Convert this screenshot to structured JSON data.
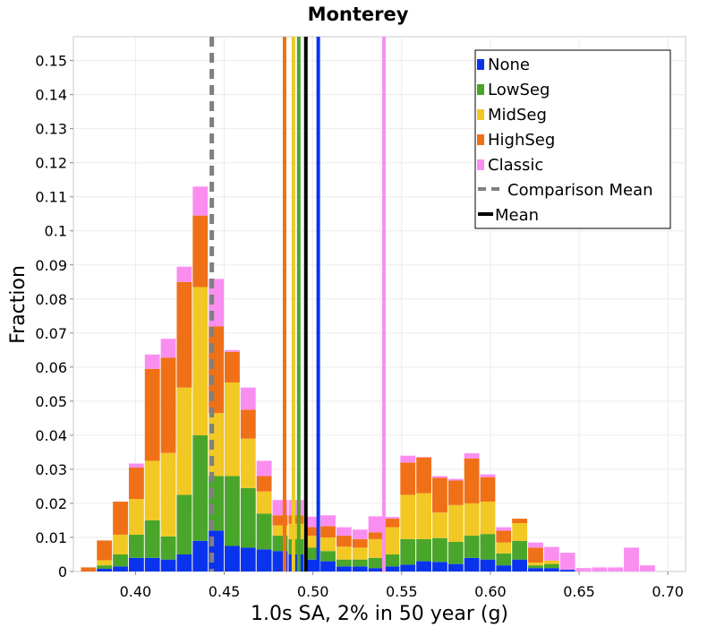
{
  "chart_data": {
    "type": "bar",
    "stacked": true,
    "title": "Monterey",
    "xlabel": "1.0s SA, 2% in 50 year (g)",
    "ylabel": "Fraction",
    "xlim": [
      0.365,
      0.71
    ],
    "ylim": [
      0,
      0.157
    ],
    "bin_width": 0.009,
    "grid": true,
    "legend_position": "top-right",
    "x_ticks": [
      0.4,
      0.45,
      0.5,
      0.55,
      0.6,
      0.65,
      0.7
    ],
    "x_tick_labels": [
      "0.40",
      "0.45",
      "0.50",
      "0.55",
      "0.60",
      "0.65",
      "0.70"
    ],
    "y_ticks": [
      0,
      0.01,
      0.02,
      0.03,
      0.04,
      0.05,
      0.06,
      0.07,
      0.08,
      0.09,
      0.1,
      0.11,
      0.12,
      0.13,
      0.14,
      0.15
    ],
    "y_tick_labels": [
      "0",
      "0.01",
      "0.02",
      "0.03",
      "0.04",
      "0.05",
      "0.06",
      "0.07",
      "0.08",
      "0.09",
      "0.1",
      "0.11",
      "0.12",
      "0.13",
      "0.14",
      "0.15"
    ],
    "bin_starts": [
      0.369,
      0.378,
      0.387,
      0.396,
      0.405,
      0.414,
      0.423,
      0.432,
      0.441,
      0.45,
      0.459,
      0.468,
      0.477,
      0.486,
      0.495,
      0.504,
      0.513,
      0.522,
      0.531,
      0.54,
      0.549,
      0.558,
      0.567,
      0.576,
      0.585,
      0.594,
      0.603,
      0.612,
      0.621,
      0.63,
      0.639,
      0.648,
      0.657,
      0.666,
      0.675,
      0.684,
      0.693,
      0.702
    ],
    "series": [
      {
        "name": "None",
        "color": "#0a33ee",
        "values": [
          0,
          0.0008,
          0.0015,
          0.004,
          0.004,
          0.0035,
          0.005,
          0.009,
          0.012,
          0.0075,
          0.007,
          0.0065,
          0.006,
          0.005,
          0.0035,
          0.003,
          0.0015,
          0.0015,
          0.001,
          0.0015,
          0.002,
          0.003,
          0.0028,
          0.0022,
          0.004,
          0.0035,
          0.0018,
          0.0035,
          0.001,
          0.001,
          0.0005,
          0,
          0,
          0,
          0,
          0,
          0,
          0
        ]
      },
      {
        "name": "LowSeg",
        "color": "#4aa62a",
        "values": [
          0,
          0.001,
          0.0035,
          0.0068,
          0.011,
          0.0068,
          0.0175,
          0.031,
          0.016,
          0.0205,
          0.0175,
          0.0105,
          0.0045,
          0.0045,
          0.0035,
          0.003,
          0.002,
          0.002,
          0.003,
          0.0035,
          0.0075,
          0.0065,
          0.007,
          0.0065,
          0.0065,
          0.0075,
          0.0035,
          0.0055,
          0.0008,
          0.0012,
          0,
          0,
          0,
          0,
          0,
          0,
          0,
          0
        ]
      },
      {
        "name": "MidSeg",
        "color": "#f2c824",
        "values": [
          0,
          0.0015,
          0.0058,
          0.0105,
          0.0175,
          0.0245,
          0.0315,
          0.0435,
          0.0185,
          0.0275,
          0.0145,
          0.0065,
          0.003,
          0.0045,
          0.0035,
          0.004,
          0.0038,
          0.0035,
          0.0055,
          0.008,
          0.013,
          0.0135,
          0.0075,
          0.0108,
          0.0095,
          0.0095,
          0.0032,
          0.0052,
          0.0008,
          0.001,
          0,
          0,
          0,
          0,
          0,
          0,
          0,
          0
        ]
      },
      {
        "name": "HighSeg",
        "color": "#f07018",
        "values": [
          0.0012,
          0.0058,
          0.0097,
          0.0092,
          0.027,
          0.028,
          0.031,
          0.021,
          0.0255,
          0.009,
          0.0085,
          0.0045,
          0.003,
          0.0025,
          0.0025,
          0.0033,
          0.0032,
          0.0025,
          0.002,
          0.0025,
          0.0095,
          0.0105,
          0.0102,
          0.0072,
          0.0132,
          0.0072,
          0.0035,
          0.0013,
          0.0044,
          0,
          0,
          0,
          0,
          0,
          0,
          0,
          0,
          0
        ]
      },
      {
        "name": "Classic",
        "color": "#fa8ef0",
        "values": [
          0,
          0,
          0,
          0.0012,
          0.0042,
          0.0055,
          0.0045,
          0.0085,
          0.0139,
          0.0005,
          0.0065,
          0.0045,
          0.0045,
          0.0045,
          0.0031,
          0.0032,
          0.0025,
          0.0028,
          0.0047,
          0.0005,
          0.002,
          0.0001,
          0.0005,
          0.0005,
          0.0015,
          0.0008,
          0.001,
          0,
          0.0015,
          0.004,
          0.005,
          0.001,
          0.0012,
          0.0012,
          0.007,
          0.0018,
          0,
          0
        ]
      }
    ],
    "vertical_lines": [
      {
        "name": "Comparison Mean",
        "x": 0.443,
        "color": "#808080",
        "style": "dashed"
      },
      {
        "name": "HighSeg",
        "x": 0.484,
        "color": "#f07018",
        "style": "solid"
      },
      {
        "name": "MidSeg",
        "x": 0.489,
        "color": "#f2c824",
        "style": "solid"
      },
      {
        "name": "LowSeg",
        "x": 0.492,
        "color": "#4aa62a",
        "style": "solid"
      },
      {
        "name": "Mean",
        "x": 0.496,
        "color": "#000000",
        "style": "solid"
      },
      {
        "name": "None",
        "x": 0.503,
        "color": "#0a33ee",
        "style": "solid"
      },
      {
        "name": "Classic",
        "x": 0.54,
        "color": "#fa8ef0",
        "style": "solid"
      }
    ],
    "legend": [
      {
        "label": "None",
        "color": "#0a33ee",
        "marker": "square"
      },
      {
        "label": "LowSeg",
        "color": "#4aa62a",
        "marker": "square"
      },
      {
        "label": "MidSeg",
        "color": "#f2c824",
        "marker": "square"
      },
      {
        "label": "HighSeg",
        "color": "#f07018",
        "marker": "square"
      },
      {
        "label": "Classic",
        "color": "#fa8ef0",
        "marker": "square"
      },
      {
        "label": "Comparison Mean",
        "color": "#808080",
        "marker": "dashed-line"
      },
      {
        "label": "Mean",
        "color": "#000000",
        "marker": "line"
      }
    ]
  }
}
